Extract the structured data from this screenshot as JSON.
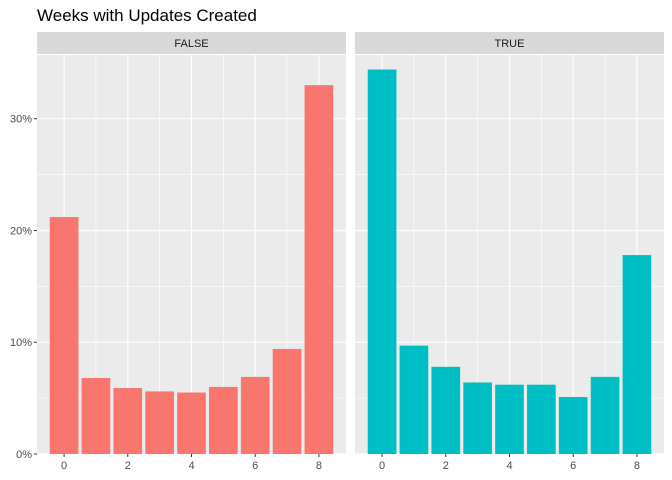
{
  "chart_data": {
    "type": "bar",
    "title": "Weeks with Updates Created",
    "xlabel": "",
    "ylabel": "",
    "x": [
      0,
      1,
      2,
      3,
      4,
      5,
      6,
      7,
      8
    ],
    "x_ticks": [
      0,
      2,
      4,
      6,
      8
    ],
    "y_ticks": [
      0,
      10,
      20,
      30
    ],
    "y_tick_labels": [
      "0%",
      "10%",
      "20%",
      "30%"
    ],
    "ylim": [
      0,
      35.7
    ],
    "xlim": [
      -0.85,
      8.85
    ],
    "grid": true,
    "legend": "none",
    "panels": [
      {
        "label": "FALSE",
        "color": "#F8766D",
        "values": [
          21.2,
          6.8,
          5.9,
          5.6,
          5.5,
          6.0,
          6.9,
          9.4,
          33.0
        ]
      },
      {
        "label": "TRUE",
        "color": "#00BFC4",
        "values": [
          34.4,
          9.7,
          7.8,
          6.4,
          6.2,
          6.2,
          5.1,
          6.9,
          17.8
        ]
      }
    ]
  },
  "colors": {
    "panel_background": "#EBEBEB",
    "strip_background": "#D9D9D9",
    "grid_major": "#FFFFFF",
    "axis_text": "#4D4D4D"
  }
}
